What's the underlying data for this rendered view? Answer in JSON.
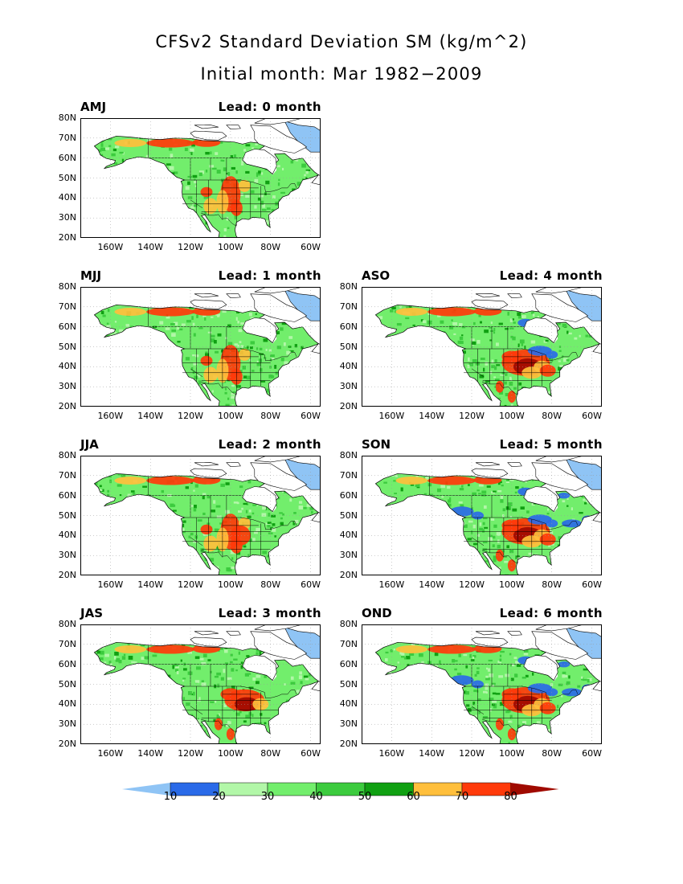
{
  "title_line1": "CFSv2 Standard Deviation SM (kg/m^2)",
  "title_line2": "Initial month: Mar 1982−2009",
  "lat_labels": [
    "80N",
    "70N",
    "60N",
    "50N",
    "40N",
    "30N",
    "20N"
  ],
  "lon_labels": [
    "160W",
    "140W",
    "120W",
    "100W",
    "80W",
    "60W"
  ],
  "panels": [
    {
      "season": "AMJ",
      "lead": "Lead: 0 month",
      "lead_months": 0
    },
    {
      "season": "MJJ",
      "lead": "Lead: 1 month",
      "lead_months": 1
    },
    {
      "season": "JJA",
      "lead": "Lead: 2 month",
      "lead_months": 2
    },
    {
      "season": "JAS",
      "lead": "Lead: 3 month",
      "lead_months": 3
    },
    {
      "season": "ASO",
      "lead": "Lead: 4 month",
      "lead_months": 4
    },
    {
      "season": "SON",
      "lead": "Lead: 5 month",
      "lead_months": 5
    },
    {
      "season": "OND",
      "lead": "Lead: 6 month",
      "lead_months": 6
    }
  ],
  "colorbar": {
    "labels": [
      "10",
      "20",
      "30",
      "40",
      "50",
      "60",
      "70",
      "80"
    ],
    "colors": [
      "#8fc4f5",
      "#2a6ae8",
      "#b2f7a8",
      "#72ee6c",
      "#3ccb3e",
      "#10a012",
      "#ffbf3c",
      "#ff3a0a",
      "#a00a00"
    ]
  },
  "map_colors": {
    "ocean": "#ffffff",
    "ice": "#ffffff",
    "border": "#000000",
    "grid": "#999999"
  }
}
